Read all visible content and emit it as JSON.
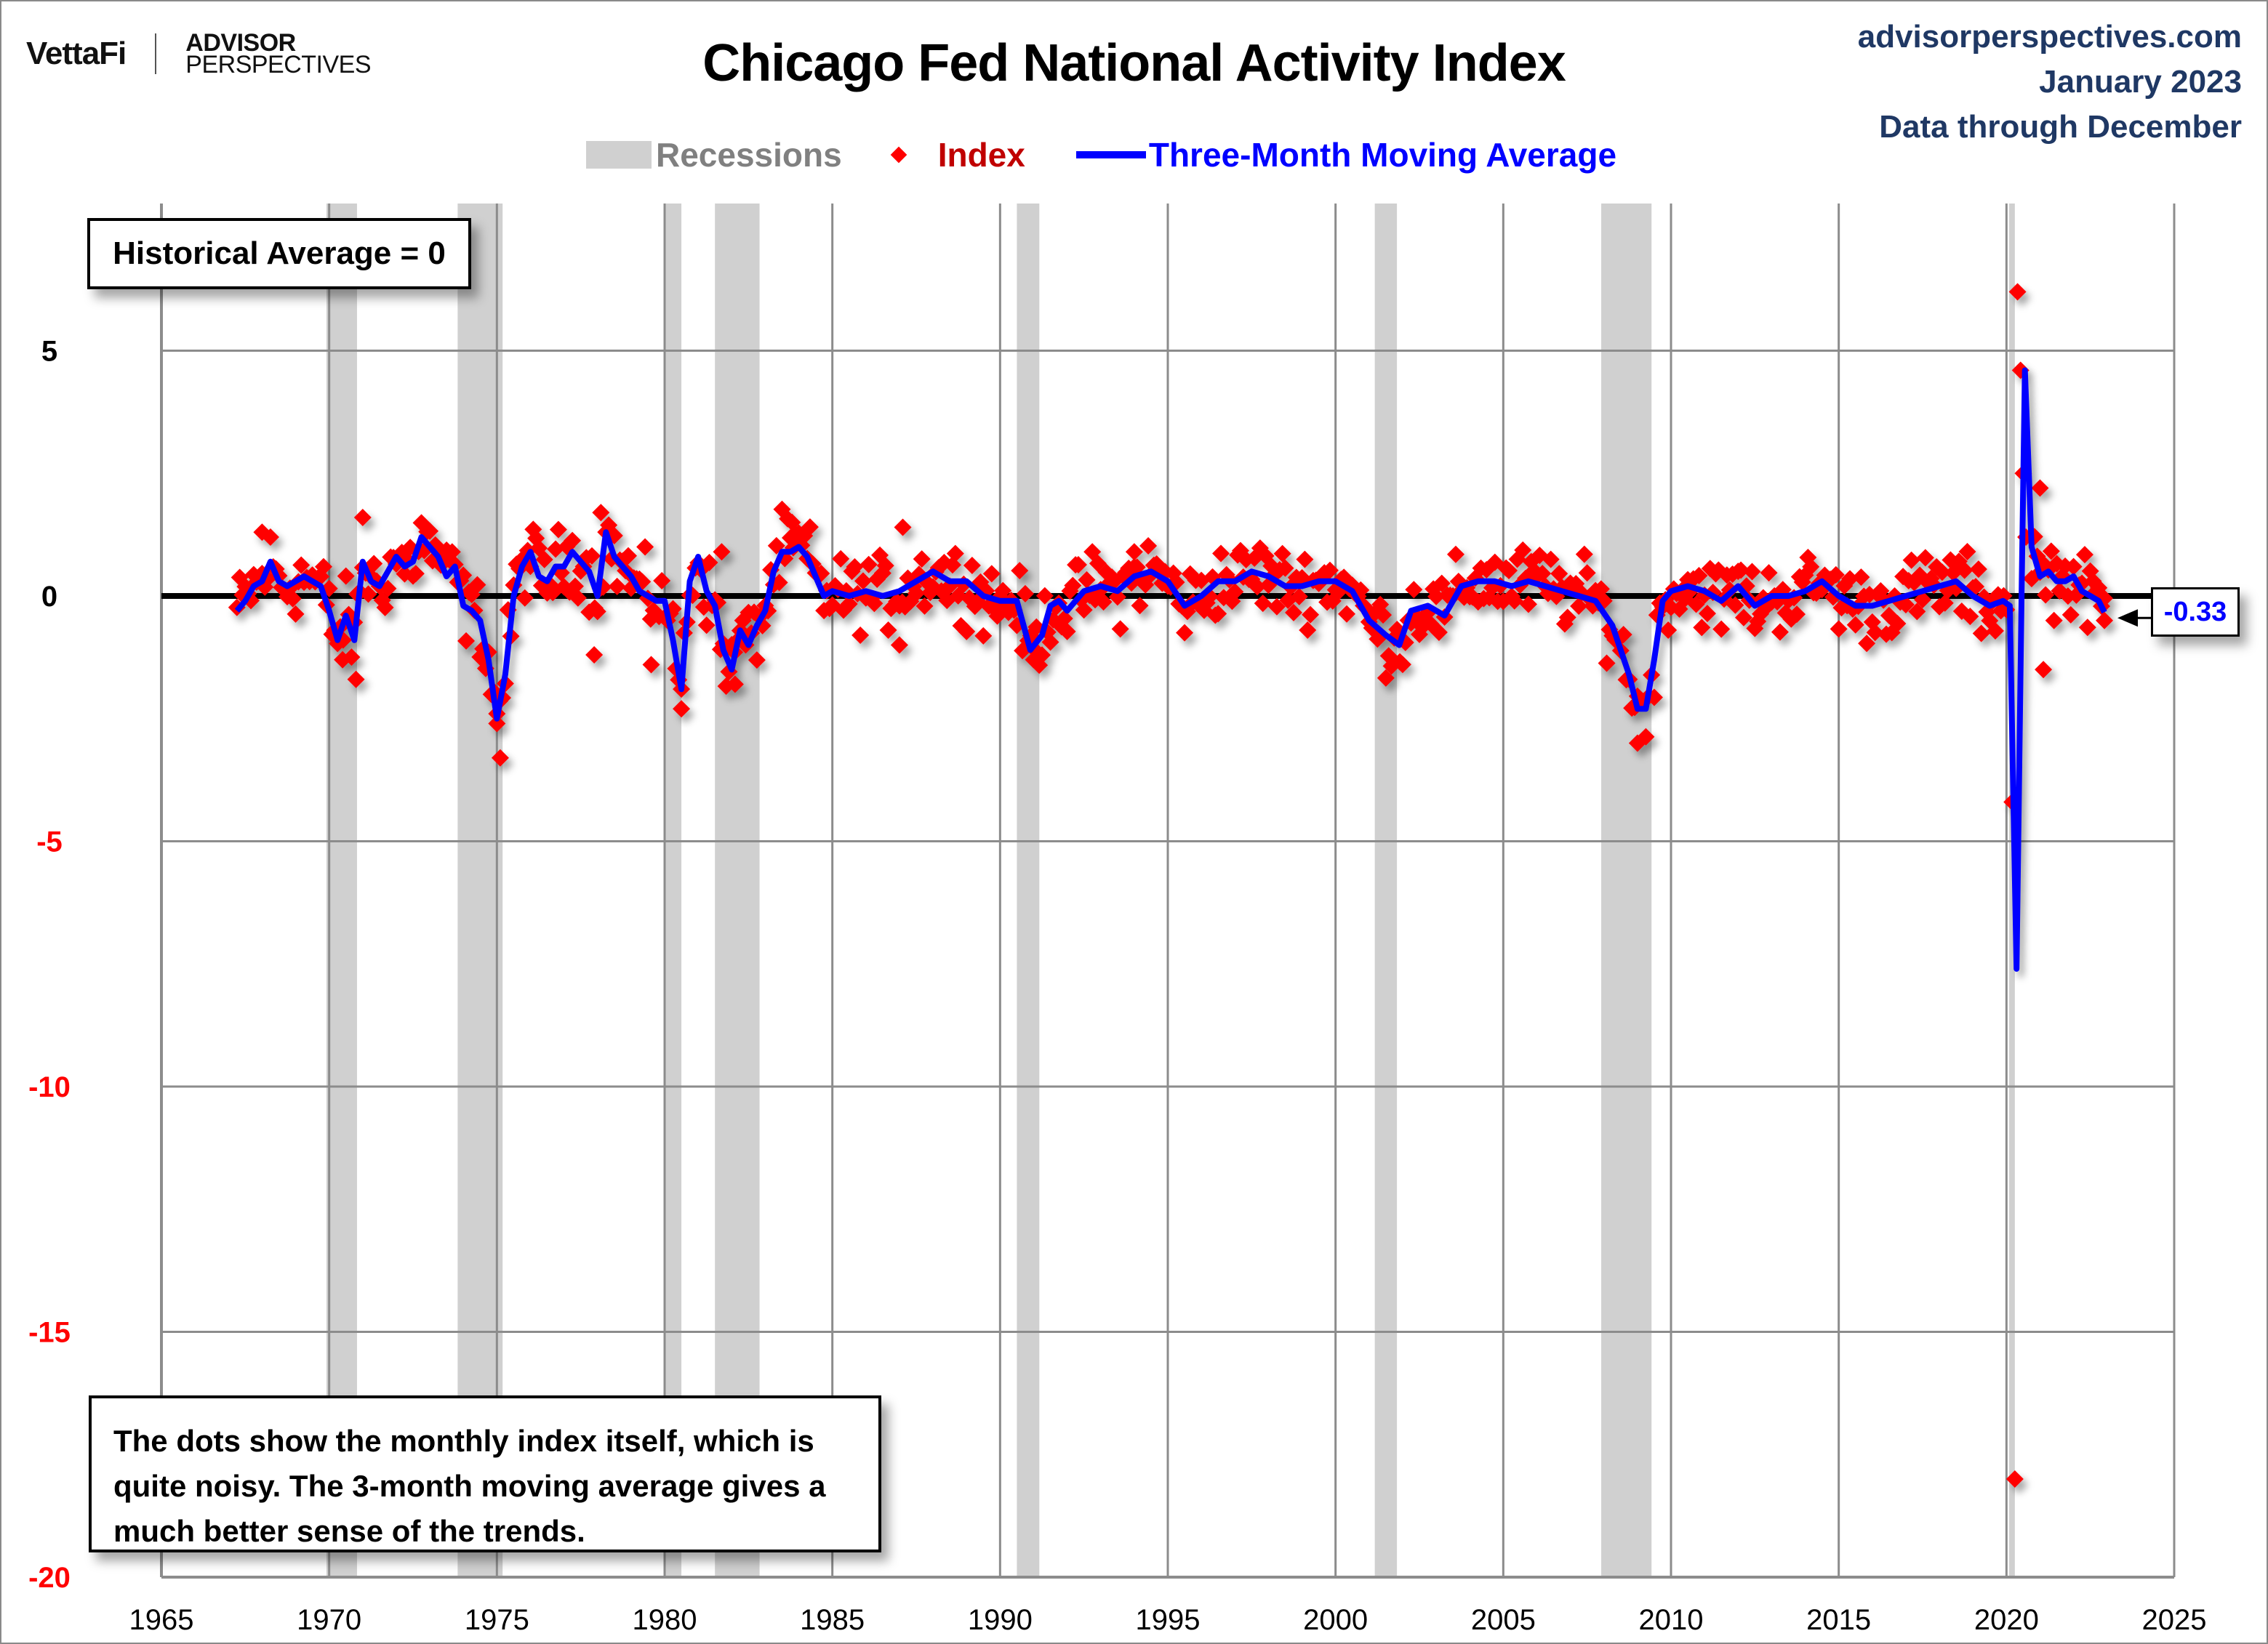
{
  "header": {
    "logo_brand": "VettaFi",
    "logo_line1": "ADVISOR",
    "logo_line2": "PERSPECTIVES",
    "title": "Chicago Fed National Activity Index",
    "site": "advisorperspectives.com",
    "date": "January 2023",
    "data_through": "Data through December"
  },
  "legend": {
    "recessions": "Recessions",
    "index": "Index",
    "moving_average": "Three-Month Moving Average"
  },
  "annotations": {
    "historical_average": "Historical Average = 0",
    "note": "The dots show the monthly  index itself, which is quite noisy. The 3-month moving average gives a much better sense of the trends.",
    "last_value": "-0.33"
  },
  "colors": {
    "index": "#ff0000",
    "moving_average": "#0000ff",
    "recession": "#d0d0d0",
    "grid": "#8c8c8c",
    "zero_line": "#000000",
    "positive_tick": "#000000",
    "negative_tick": "#ff0000",
    "header_text": "#1f3864"
  },
  "chart_data": {
    "type": "scatter+line",
    "title": "Chicago Fed National Activity Index",
    "xlabel": "",
    "ylabel": "",
    "xlim": [
      1965,
      2025
    ],
    "ylim": [
      -20,
      8
    ],
    "x_ticks": [
      1965,
      1970,
      1975,
      1980,
      1985,
      1990,
      1995,
      2000,
      2005,
      2010,
      2015,
      2020,
      2025
    ],
    "y_ticks": [
      5,
      0,
      -5,
      -10,
      -15,
      -20
    ],
    "grid": true,
    "legend_position": "top-center",
    "recessions": [
      [
        1969.92,
        1970.83
      ],
      [
        1973.83,
        1975.17
      ],
      [
        1980.0,
        1980.5
      ],
      [
        1981.5,
        1982.83
      ],
      [
        1990.5,
        1991.17
      ],
      [
        2001.17,
        2001.83
      ],
      [
        2007.92,
        2009.42
      ],
      [
        2020.08,
        2020.25
      ]
    ],
    "moving_average": {
      "name": "Three-Month Moving Average",
      "points": [
        [
          1967.25,
          -0.3
        ],
        [
          1967.5,
          -0.1
        ],
        [
          1967.75,
          0.2
        ],
        [
          1968.0,
          0.3
        ],
        [
          1968.25,
          0.7
        ],
        [
          1968.5,
          0.3
        ],
        [
          1968.75,
          0.2
        ],
        [
          1969.0,
          0.3
        ],
        [
          1969.25,
          0.4
        ],
        [
          1969.5,
          0.3
        ],
        [
          1969.75,
          0.2
        ],
        [
          1970.0,
          -0.3
        ],
        [
          1970.25,
          -0.9
        ],
        [
          1970.5,
          -0.4
        ],
        [
          1970.75,
          -0.9
        ],
        [
          1971.0,
          0.7
        ],
        [
          1971.25,
          0.3
        ],
        [
          1971.5,
          0.2
        ],
        [
          1971.75,
          0.5
        ],
        [
          1972.0,
          0.8
        ],
        [
          1972.25,
          0.6
        ],
        [
          1972.5,
          0.7
        ],
        [
          1972.75,
          1.2
        ],
        [
          1973.0,
          1.0
        ],
        [
          1973.25,
          0.8
        ],
        [
          1973.5,
          0.4
        ],
        [
          1973.75,
          0.6
        ],
        [
          1974.0,
          -0.2
        ],
        [
          1974.25,
          -0.3
        ],
        [
          1974.5,
          -0.5
        ],
        [
          1974.75,
          -1.3
        ],
        [
          1975.0,
          -2.5
        ],
        [
          1975.25,
          -1.6
        ],
        [
          1975.5,
          0.0
        ],
        [
          1975.75,
          0.6
        ],
        [
          1976.0,
          0.9
        ],
        [
          1976.25,
          0.4
        ],
        [
          1976.5,
          0.3
        ],
        [
          1976.75,
          0.6
        ],
        [
          1977.0,
          0.6
        ],
        [
          1977.25,
          0.9
        ],
        [
          1977.5,
          0.7
        ],
        [
          1977.75,
          0.5
        ],
        [
          1978.0,
          0.0
        ],
        [
          1978.25,
          1.3
        ],
        [
          1978.5,
          0.8
        ],
        [
          1978.75,
          0.6
        ],
        [
          1979.0,
          0.4
        ],
        [
          1979.25,
          0.1
        ],
        [
          1979.5,
          0.0
        ],
        [
          1979.75,
          -0.1
        ],
        [
          1980.0,
          -0.1
        ],
        [
          1980.25,
          -0.9
        ],
        [
          1980.5,
          -1.9
        ],
        [
          1980.75,
          0.3
        ],
        [
          1981.0,
          0.8
        ],
        [
          1981.25,
          0.1
        ],
        [
          1981.5,
          -0.2
        ],
        [
          1981.75,
          -1.1
        ],
        [
          1982.0,
          -1.5
        ],
        [
          1982.25,
          -0.7
        ],
        [
          1982.5,
          -1.0
        ],
        [
          1982.75,
          -0.6
        ],
        [
          1983.0,
          -0.3
        ],
        [
          1983.25,
          0.5
        ],
        [
          1983.5,
          0.9
        ],
        [
          1983.75,
          0.9
        ],
        [
          1984.0,
          1.0
        ],
        [
          1984.25,
          0.8
        ],
        [
          1984.5,
          0.4
        ],
        [
          1984.75,
          0.0
        ],
        [
          1985.0,
          0.1
        ],
        [
          1985.5,
          0.0
        ],
        [
          1986.0,
          0.1
        ],
        [
          1986.5,
          0.0
        ],
        [
          1987.0,
          0.1
        ],
        [
          1987.5,
          0.3
        ],
        [
          1988.0,
          0.5
        ],
        [
          1988.5,
          0.3
        ],
        [
          1989.0,
          0.3
        ],
        [
          1989.5,
          0.0
        ],
        [
          1990.0,
          -0.1
        ],
        [
          1990.5,
          -0.1
        ],
        [
          1990.9,
          -1.1
        ],
        [
          1991.25,
          -0.8
        ],
        [
          1991.5,
          -0.2
        ],
        [
          1991.75,
          -0.1
        ],
        [
          1992.0,
          -0.3
        ],
        [
          1992.5,
          0.1
        ],
        [
          1993.0,
          0.2
        ],
        [
          1993.5,
          0.1
        ],
        [
          1994.0,
          0.4
        ],
        [
          1994.5,
          0.5
        ],
        [
          1995.0,
          0.3
        ],
        [
          1995.5,
          -0.2
        ],
        [
          1996.0,
          0.0
        ],
        [
          1996.5,
          0.3
        ],
        [
          1997.0,
          0.3
        ],
        [
          1997.5,
          0.5
        ],
        [
          1998.0,
          0.4
        ],
        [
          1998.5,
          0.2
        ],
        [
          1999.0,
          0.2
        ],
        [
          1999.5,
          0.3
        ],
        [
          2000.0,
          0.3
        ],
        [
          2000.5,
          0.1
        ],
        [
          2001.0,
          -0.5
        ],
        [
          2001.5,
          -0.8
        ],
        [
          2001.9,
          -1.0
        ],
        [
          2002.25,
          -0.3
        ],
        [
          2002.75,
          -0.2
        ],
        [
          2003.25,
          -0.4
        ],
        [
          2003.75,
          0.2
        ],
        [
          2004.25,
          0.3
        ],
        [
          2004.75,
          0.3
        ],
        [
          2005.25,
          0.2
        ],
        [
          2005.75,
          0.3
        ],
        [
          2006.25,
          0.2
        ],
        [
          2006.75,
          0.1
        ],
        [
          2007.25,
          0.0
        ],
        [
          2007.75,
          -0.1
        ],
        [
          2008.25,
          -0.6
        ],
        [
          2008.75,
          -1.6
        ],
        [
          2009.0,
          -2.3
        ],
        [
          2009.25,
          -2.3
        ],
        [
          2009.5,
          -1.3
        ],
        [
          2009.75,
          -0.1
        ],
        [
          2010.0,
          0.1
        ],
        [
          2010.5,
          0.2
        ],
        [
          2011.0,
          0.1
        ],
        [
          2011.5,
          -0.1
        ],
        [
          2012.0,
          0.2
        ],
        [
          2012.5,
          -0.2
        ],
        [
          2013.0,
          0.0
        ],
        [
          2013.5,
          0.0
        ],
        [
          2014.0,
          0.1
        ],
        [
          2014.5,
          0.3
        ],
        [
          2015.0,
          0.0
        ],
        [
          2015.5,
          -0.2
        ],
        [
          2016.0,
          -0.2
        ],
        [
          2016.5,
          -0.1
        ],
        [
          2017.0,
          0.0
        ],
        [
          2017.5,
          0.1
        ],
        [
          2018.0,
          0.2
        ],
        [
          2018.5,
          0.3
        ],
        [
          2019.0,
          0.0
        ],
        [
          2019.5,
          -0.2
        ],
        [
          2019.9,
          -0.1
        ],
        [
          2020.1,
          -0.2
        ],
        [
          2020.3,
          -7.6
        ],
        [
          2020.45,
          0.0
        ],
        [
          2020.55,
          4.6
        ],
        [
          2020.75,
          1.0
        ],
        [
          2021.0,
          0.4
        ],
        [
          2021.25,
          0.5
        ],
        [
          2021.5,
          0.3
        ],
        [
          2021.75,
          0.3
        ],
        [
          2022.0,
          0.4
        ],
        [
          2022.25,
          0.1
        ],
        [
          2022.5,
          0.0
        ],
        [
          2022.75,
          -0.1
        ],
        [
          2022.92,
          -0.33
        ]
      ]
    },
    "index_outliers": [
      {
        "x": 1968.0,
        "y": 1.3
      },
      {
        "x": 1970.4,
        "y": -1.3
      },
      {
        "x": 1970.8,
        "y": -1.7
      },
      {
        "x": 1971.0,
        "y": 1.6
      },
      {
        "x": 1975.1,
        "y": -3.3
      },
      {
        "x": 1975.0,
        "y": -2.4
      },
      {
        "x": 1978.1,
        "y": 1.7
      },
      {
        "x": 1979.6,
        "y": -1.4
      },
      {
        "x": 1977.9,
        "y": -1.2
      },
      {
        "x": 1980.5,
        "y": -2.3
      },
      {
        "x": 1981.7,
        "y": 0.9
      },
      {
        "x": 1982.1,
        "y": -1.8
      },
      {
        "x": 1983.8,
        "y": 1.5
      },
      {
        "x": 1987.1,
        "y": 1.4
      },
      {
        "x": 1987.0,
        "y": -1.0
      },
      {
        "x": 1991.0,
        "y": -1.3
      },
      {
        "x": 1994.0,
        "y": 0.9
      },
      {
        "x": 2009.0,
        "y": -3.0
      },
      {
        "x": 2020.17,
        "y": -4.2
      },
      {
        "x": 2020.25,
        "y": -18.0
      },
      {
        "x": 2020.42,
        "y": 4.6
      },
      {
        "x": 2020.33,
        "y": 6.2
      },
      {
        "x": 2020.5,
        "y": 2.5
      },
      {
        "x": 2020.58,
        "y": 1.2
      },
      {
        "x": 2021.0,
        "y": 2.2
      },
      {
        "x": 2021.1,
        "y": -1.5
      },
      {
        "x": 2022.92,
        "y": -0.5
      }
    ],
    "index_noise_amplitude": 0.45,
    "last_value_label": -0.33
  }
}
